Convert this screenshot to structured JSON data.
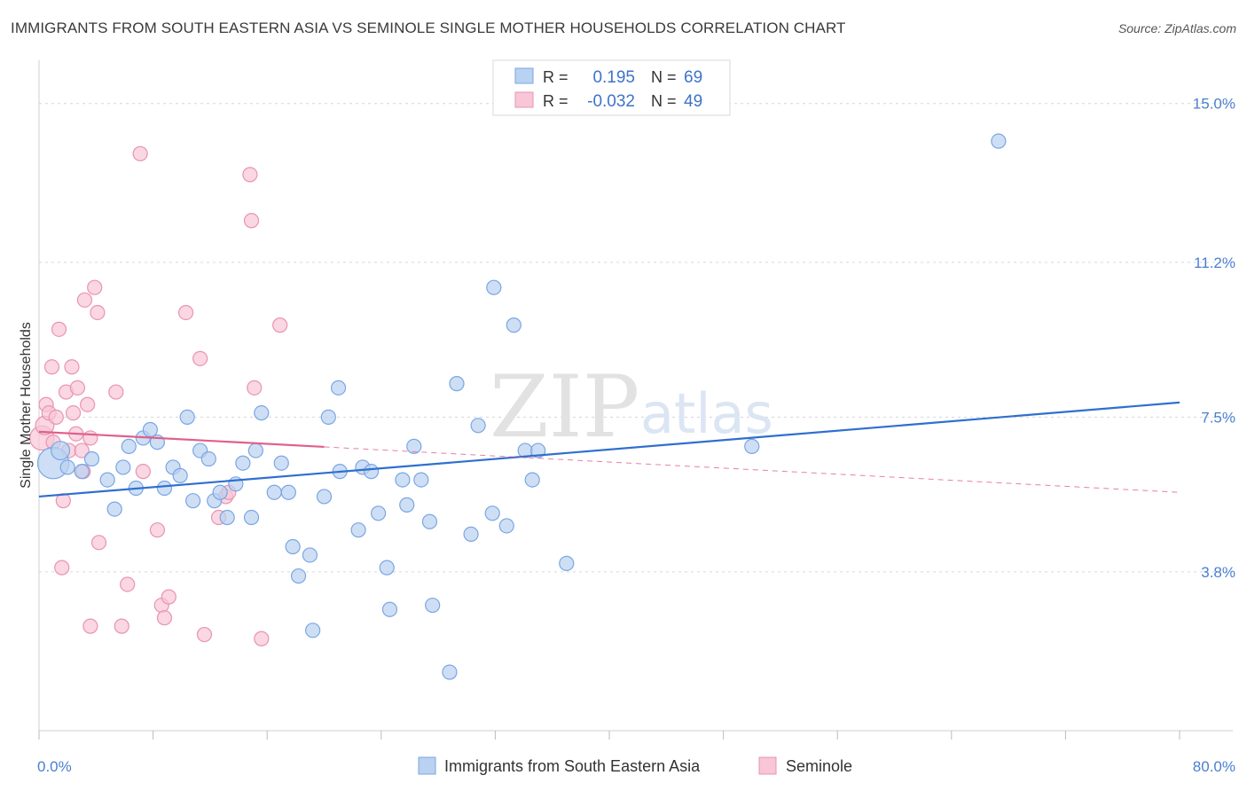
{
  "title": "IMMIGRANTS FROM SOUTH EASTERN ASIA VS SEMINOLE SINGLE MOTHER HOUSEHOLDS CORRELATION CHART",
  "source": "Source: ZipAtlas.com",
  "watermark": {
    "zip": "ZIP",
    "atlas": "atlas"
  },
  "colors": {
    "blue_fill": "#b9d2f1",
    "blue_stroke": "#7aa6e3",
    "blue_line": "#2f6fcf",
    "pink_fill": "#f8c6d6",
    "pink_stroke": "#e894b0",
    "pink_line": "#e0608a"
  },
  "legend": {
    "r_label": "R =",
    "n_label": "N =",
    "rows": [
      {
        "r": "0.195",
        "n": "69"
      },
      {
        "r": "-0.032",
        "n": "49"
      }
    ]
  },
  "chart_data": {
    "type": "scatter",
    "title": "IMMIGRANTS FROM SOUTH EASTERN ASIA VS SEMINOLE SINGLE MOTHER HOUSEHOLDS CORRELATION CHART",
    "xlabel": "",
    "ylabel": "Single Mother Households",
    "xlim": [
      0,
      80
    ],
    "ylim": [
      0,
      15.8
    ],
    "x_tick_labels": [
      "0.0%",
      "80.0%"
    ],
    "y_ticks": [
      {
        "value": 3.8,
        "label": "3.8%"
      },
      {
        "value": 7.5,
        "label": "7.5%"
      },
      {
        "value": 11.2,
        "label": "11.2%"
      },
      {
        "value": 15.0,
        "label": "15.0%"
      }
    ],
    "grid": true,
    "series": [
      {
        "name": "Immigrants from South Eastern Asia",
        "color": "blue",
        "trend": {
          "x0": 0,
          "y0": 5.6,
          "x1": 80,
          "y1": 7.85,
          "dashed_from": null
        },
        "points": [
          [
            1.0,
            6.4,
            2.2
          ],
          [
            1.5,
            6.7,
            1.3
          ],
          [
            2.0,
            6.3,
            1
          ],
          [
            3.0,
            6.2,
            1
          ],
          [
            3.7,
            6.5,
            1
          ],
          [
            4.8,
            6.0,
            1
          ],
          [
            5.3,
            5.3,
            1
          ],
          [
            5.9,
            6.3,
            1
          ],
          [
            6.3,
            6.8,
            1
          ],
          [
            6.8,
            5.8,
            1
          ],
          [
            7.3,
            7.0,
            1
          ],
          [
            7.8,
            7.2,
            1
          ],
          [
            8.3,
            6.9,
            1
          ],
          [
            8.8,
            5.8,
            1
          ],
          [
            9.4,
            6.3,
            1
          ],
          [
            9.9,
            6.1,
            1
          ],
          [
            10.4,
            7.5,
            1
          ],
          [
            10.8,
            5.5,
            1
          ],
          [
            11.3,
            6.7,
            1
          ],
          [
            11.9,
            6.5,
            1
          ],
          [
            12.3,
            5.5,
            1
          ],
          [
            12.7,
            5.7,
            1
          ],
          [
            13.2,
            5.1,
            1
          ],
          [
            13.8,
            5.9,
            1
          ],
          [
            14.3,
            6.4,
            1
          ],
          [
            14.9,
            5.1,
            1
          ],
          [
            15.2,
            6.7,
            1
          ],
          [
            15.6,
            7.6,
            1
          ],
          [
            16.5,
            5.7,
            1
          ],
          [
            17.0,
            6.4,
            1
          ],
          [
            17.5,
            5.7,
            1
          ],
          [
            17.8,
            4.4,
            1
          ],
          [
            18.2,
            3.7,
            1
          ],
          [
            19.0,
            4.2,
            1
          ],
          [
            19.2,
            2.4,
            1
          ],
          [
            20.0,
            5.6,
            1
          ],
          [
            20.3,
            7.5,
            1
          ],
          [
            21.0,
            8.2,
            1
          ],
          [
            21.1,
            6.2,
            1
          ],
          [
            22.4,
            4.8,
            1
          ],
          [
            22.7,
            6.3,
            1
          ],
          [
            23.3,
            6.2,
            1
          ],
          [
            23.8,
            5.2,
            1
          ],
          [
            24.4,
            3.9,
            1
          ],
          [
            24.6,
            2.9,
            1
          ],
          [
            25.5,
            6.0,
            1
          ],
          [
            25.8,
            5.4,
            1
          ],
          [
            26.3,
            6.8,
            1
          ],
          [
            26.8,
            6.0,
            1
          ],
          [
            27.4,
            5.0,
            1
          ],
          [
            27.6,
            3.0,
            1
          ],
          [
            28.8,
            1.4,
            1
          ],
          [
            29.3,
            8.3,
            1
          ],
          [
            30.3,
            4.7,
            1
          ],
          [
            30.8,
            7.3,
            1
          ],
          [
            31.8,
            5.2,
            1
          ],
          [
            31.9,
            10.6,
            1
          ],
          [
            32.8,
            4.9,
            1
          ],
          [
            33.3,
            9.7,
            1
          ],
          [
            34.1,
            6.7,
            1
          ],
          [
            34.6,
            6.0,
            1
          ],
          [
            35.0,
            6.7,
            1
          ],
          [
            37.0,
            4.0,
            1
          ],
          [
            50.0,
            6.8,
            1
          ],
          [
            67.3,
            14.1,
            1
          ]
        ]
      },
      {
        "name": "Seminole",
        "color": "pink",
        "trend": {
          "x0": 0,
          "y0": 7.15,
          "x1": 80,
          "y1": 5.7,
          "dashed_from": 20
        },
        "points": [
          [
            0.2,
            7.0,
            1.7
          ],
          [
            0.4,
            7.3,
            1.3
          ],
          [
            0.5,
            7.8,
            1
          ],
          [
            0.7,
            7.6,
            1
          ],
          [
            0.9,
            8.7,
            1
          ],
          [
            1.0,
            6.9,
            1
          ],
          [
            1.2,
            7.5,
            1
          ],
          [
            1.4,
            9.6,
            1
          ],
          [
            1.6,
            3.9,
            1
          ],
          [
            1.7,
            5.5,
            1
          ],
          [
            1.9,
            8.1,
            1
          ],
          [
            2.1,
            6.7,
            1
          ],
          [
            2.3,
            8.7,
            1
          ],
          [
            2.4,
            7.6,
            1
          ],
          [
            2.6,
            7.1,
            1
          ],
          [
            2.7,
            8.2,
            1
          ],
          [
            3.0,
            6.7,
            1
          ],
          [
            3.1,
            6.2,
            1
          ],
          [
            3.2,
            10.3,
            1
          ],
          [
            3.4,
            7.8,
            1
          ],
          [
            3.6,
            7.0,
            1
          ],
          [
            3.6,
            2.5,
            1
          ],
          [
            3.9,
            10.6,
            1
          ],
          [
            4.1,
            10.0,
            1
          ],
          [
            4.2,
            4.5,
            1
          ],
          [
            5.4,
            8.1,
            1
          ],
          [
            5.8,
            2.5,
            1
          ],
          [
            6.2,
            3.5,
            1
          ],
          [
            7.1,
            13.8,
            1
          ],
          [
            7.3,
            6.2,
            1
          ],
          [
            8.3,
            4.8,
            1
          ],
          [
            8.6,
            3.0,
            1
          ],
          [
            8.8,
            2.7,
            1
          ],
          [
            9.1,
            3.2,
            1
          ],
          [
            10.3,
            10.0,
            1
          ],
          [
            11.3,
            8.9,
            1
          ],
          [
            11.6,
            2.3,
            1
          ],
          [
            12.6,
            5.1,
            1
          ],
          [
            13.1,
            5.6,
            1
          ],
          [
            13.3,
            5.7,
            1
          ],
          [
            14.8,
            13.3,
            1
          ],
          [
            14.9,
            12.2,
            1
          ],
          [
            15.1,
            8.2,
            1
          ],
          [
            15.6,
            2.2,
            1
          ],
          [
            16.9,
            9.7,
            1
          ]
        ]
      }
    ]
  },
  "bottom_legend": [
    {
      "label": "Immigrants from South Eastern Asia",
      "color": "blue"
    },
    {
      "label": "Seminole",
      "color": "pink"
    }
  ]
}
